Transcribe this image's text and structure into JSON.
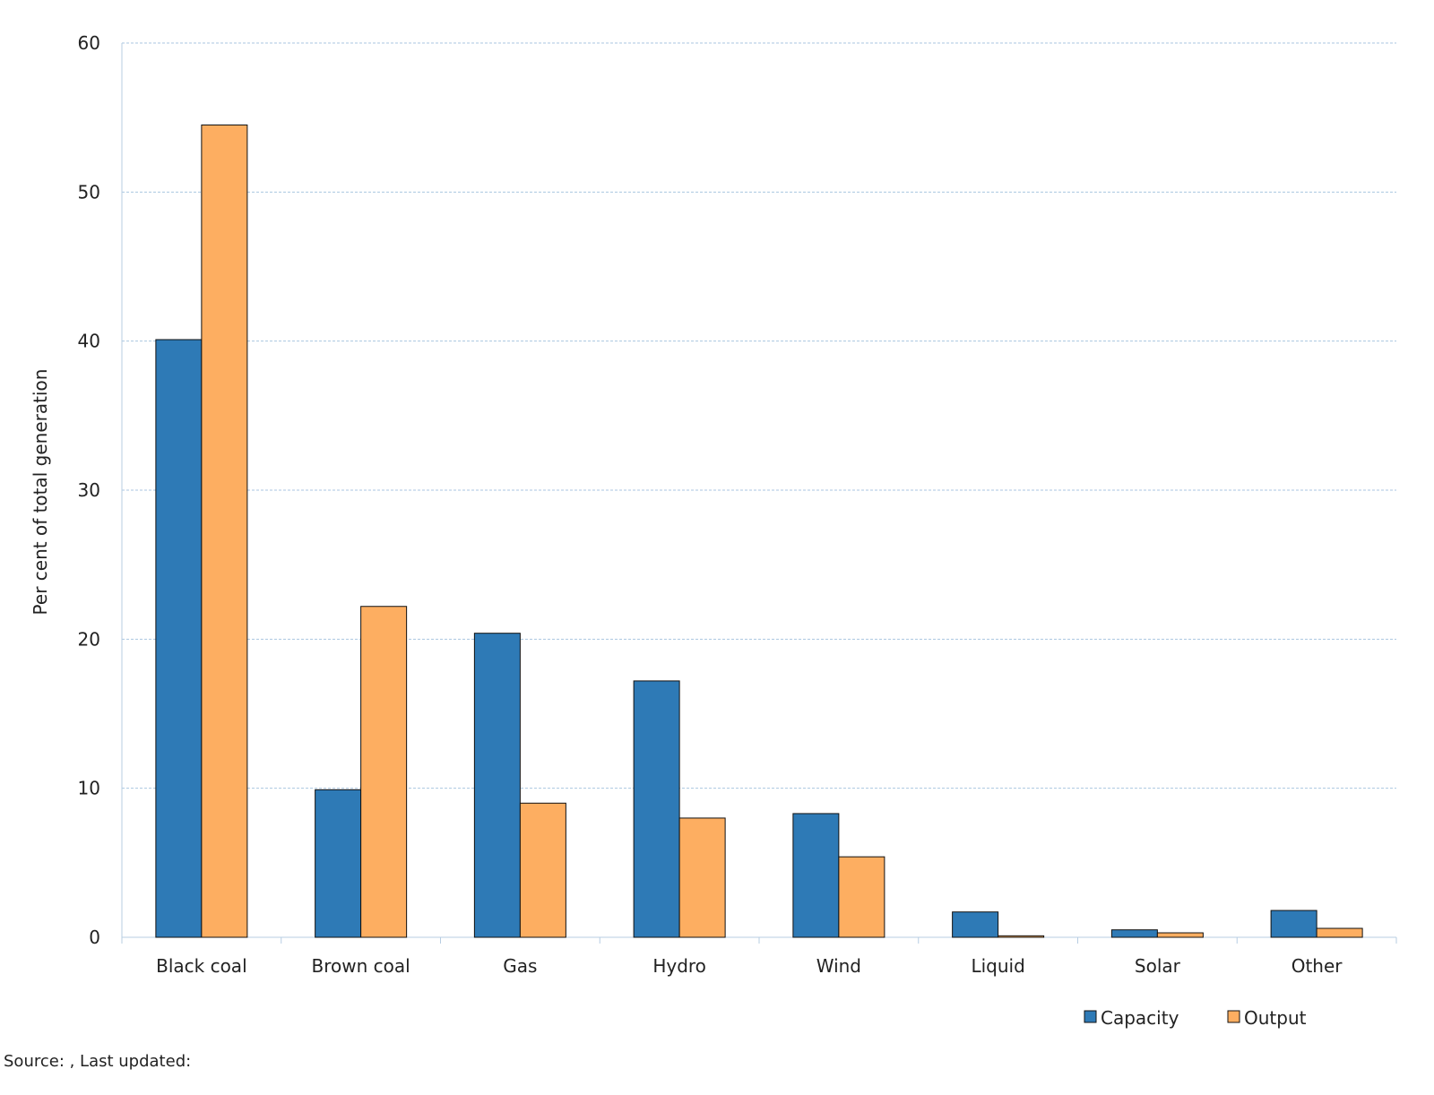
{
  "chart_data": {
    "type": "bar",
    "title": "",
    "xlabel": "",
    "ylabel": "Per cent of total generation",
    "ylim": [
      0,
      60
    ],
    "yticks": [
      0,
      10,
      20,
      30,
      40,
      50,
      60
    ],
    "grid": true,
    "legend_position": "bottom-right",
    "categories": [
      "Black coal",
      "Brown coal",
      "Gas",
      "Hydro",
      "Wind",
      "Liquid",
      "Solar",
      "Other"
    ],
    "series": [
      {
        "name": "Capacity",
        "color": "#2e7ab6",
        "values": [
          40.1,
          9.9,
          20.4,
          17.2,
          8.3,
          1.7,
          0.5,
          1.8
        ]
      },
      {
        "name": "Output",
        "color": "#fdae61",
        "values": [
          54.5,
          22.2,
          9.0,
          8.0,
          5.4,
          0.1,
          0.3,
          0.6
        ]
      }
    ]
  },
  "source_note": "Source: , Last updated:"
}
